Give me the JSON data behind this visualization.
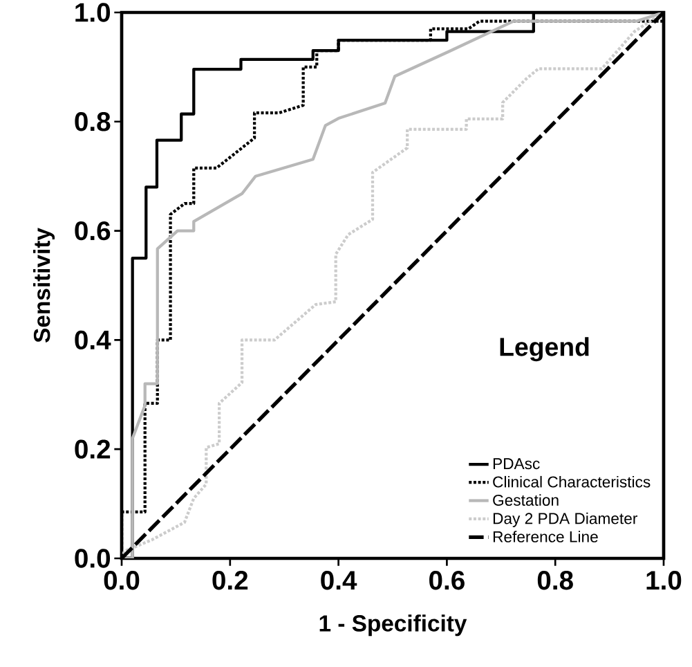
{
  "chart_data": {
    "type": "line",
    "xlabel": "1 - Specificity",
    "ylabel": "Sensitivity",
    "legend_title": "Legend",
    "legend": "bottom right",
    "xlim": [
      0,
      1
    ],
    "ylim": [
      0,
      1
    ],
    "xticks": [
      {
        "value": 0,
        "label": "0.0"
      },
      {
        "value": 0.2,
        "label": "0.2"
      },
      {
        "value": 0.4,
        "label": "0.4"
      },
      {
        "value": 0.6,
        "label": "0.6"
      },
      {
        "value": 0.8,
        "label": "0.8"
      },
      {
        "value": 1,
        "label": "1.0"
      }
    ],
    "yticks": [
      {
        "value": 0,
        "label": "0.0"
      },
      {
        "value": 0.2,
        "label": "0.2"
      },
      {
        "value": 0.4,
        "label": "0.4"
      },
      {
        "value": 0.6,
        "label": "0.6"
      },
      {
        "value": 0.8,
        "label": "0.8"
      },
      {
        "value": 1,
        "label": "1.0"
      }
    ],
    "series": [
      {
        "name": "PDAsc",
        "color": "#000000",
        "line_style": "solid",
        "x": [
          0,
          0.02,
          0.02,
          0.045,
          0.045,
          0.065,
          0.065,
          0.11,
          0.11,
          0.133,
          0.133,
          0.22,
          0.22,
          0.353,
          0.353,
          0.4,
          0.4,
          0.6,
          0.6,
          0.76,
          0.76,
          1
        ],
        "values": [
          0,
          0,
          0.55,
          0.55,
          0.68,
          0.68,
          0.766,
          0.766,
          0.814,
          0.814,
          0.896,
          0.896,
          0.914,
          0.914,
          0.93,
          0.93,
          0.949,
          0.949,
          0.965,
          0.965,
          1,
          1
        ]
      },
      {
        "name": "Clinical Characteristics",
        "color": "#000000",
        "line_style": "dotted",
        "x": [
          0,
          0,
          0.043,
          0.043,
          0.066,
          0.066,
          0.09,
          0.09,
          0.116,
          0.133,
          0.133,
          0.175,
          0.245,
          0.245,
          0.29,
          0.335,
          0.335,
          0.36,
          0.36,
          0.4,
          0.4,
          0.57,
          0.57,
          0.64,
          0.66,
          1,
          1
        ],
        "values": [
          0,
          0.085,
          0.085,
          0.284,
          0.284,
          0.4,
          0.4,
          0.63,
          0.65,
          0.65,
          0.715,
          0.715,
          0.77,
          0.816,
          0.816,
          0.83,
          0.9,
          0.9,
          0.93,
          0.93,
          0.949,
          0.949,
          0.97,
          0.97,
          0.984,
          0.984,
          1
        ]
      },
      {
        "name": "Gestation",
        "color": "#b8b8b8",
        "line_style": "solid",
        "x": [
          0,
          0.02,
          0.02,
          0.043,
          0.043,
          0.066,
          0.066,
          0.103,
          0.133,
          0.133,
          0.222,
          0.247,
          0.353,
          0.376,
          0.4,
          0.486,
          0.504,
          0.605,
          0.723,
          0.95,
          1
        ],
        "values": [
          0,
          0,
          0.22,
          0.28,
          0.32,
          0.32,
          0.567,
          0.6,
          0.6,
          0.617,
          0.668,
          0.7,
          0.731,
          0.793,
          0.806,
          0.834,
          0.883,
          0.929,
          0.984,
          0.984,
          1
        ]
      },
      {
        "name": "Day 2 PDA Diameter",
        "color": "#cccccc",
        "line_style": "dotted",
        "x": [
          0,
          0.005,
          0.056,
          0.116,
          0.133,
          0.156,
          0.156,
          0.18,
          0.18,
          0.222,
          0.222,
          0.282,
          0.358,
          0.395,
          0.395,
          0.418,
          0.463,
          0.463,
          0.527,
          0.527,
          0.636,
          0.636,
          0.703,
          0.703,
          0.746,
          0.769,
          0.886,
          0.946,
          1
        ],
        "values": [
          0,
          0.013,
          0.034,
          0.066,
          0.11,
          0.136,
          0.203,
          0.21,
          0.284,
          0.322,
          0.4,
          0.4,
          0.465,
          0.47,
          0.557,
          0.593,
          0.621,
          0.707,
          0.752,
          0.786,
          0.786,
          0.805,
          0.805,
          0.835,
          0.878,
          0.897,
          0.897,
          0.965,
          1
        ]
      },
      {
        "name": "Reference Line",
        "color": "#000000",
        "line_style": "dashed",
        "x": [
          0,
          1
        ],
        "values": [
          0,
          1
        ]
      }
    ]
  }
}
